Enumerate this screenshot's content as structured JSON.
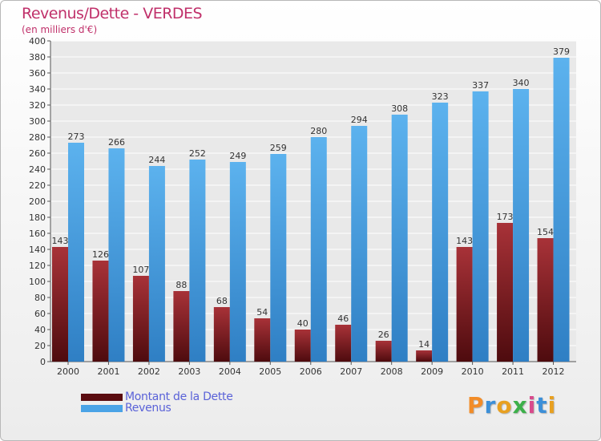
{
  "chart_data": {
    "type": "bar",
    "title": "Revenus/Dette - VERDES",
    "subtitle": "(en milliers d'€)",
    "categories": [
      "2000",
      "2001",
      "2002",
      "2003",
      "2004",
      "2005",
      "2006",
      "2007",
      "2008",
      "2009",
      "2010",
      "2011",
      "2012"
    ],
    "series": [
      {
        "name": "Montant de la Dette",
        "color": "#7a1e22",
        "values": [
          143,
          126,
          107,
          88,
          68,
          54,
          40,
          46,
          26,
          14,
          143,
          173,
          154
        ]
      },
      {
        "name": "Revenus",
        "color": "#4aa3e6",
        "values": [
          273,
          266,
          244,
          252,
          249,
          259,
          280,
          294,
          308,
          323,
          337,
          340,
          379
        ]
      }
    ],
    "ylim": [
      0,
      400
    ],
    "ytick_step": 20,
    "grid": true,
    "legend": "bottom-left"
  },
  "logo": {
    "text": "Proxiti"
  }
}
